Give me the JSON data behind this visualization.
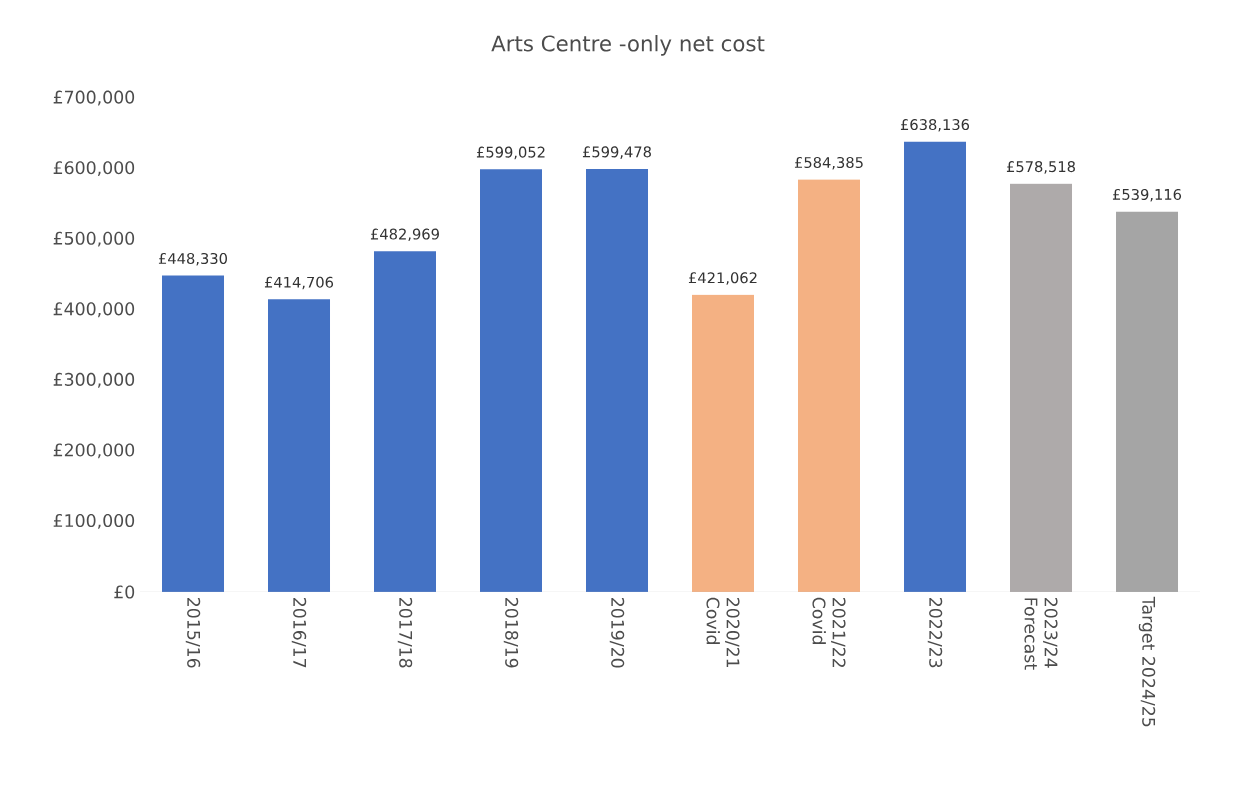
{
  "chart_data": {
    "type": "bar",
    "title": "Arts Centre -only net cost",
    "categories": [
      "2015/16",
      "2016/17",
      "2017/18",
      "2018/19",
      "2019/20",
      "2020/21 Covid",
      "2021/22 Covid",
      "2022/23",
      "2023/24 Forecast",
      "Target 2024/25"
    ],
    "values": [
      448330,
      414706,
      482969,
      599052,
      599478,
      421062,
      584385,
      638136,
      578518,
      539116
    ],
    "colors": [
      "#4472c4",
      "#4472c4",
      "#4472c4",
      "#4472c4",
      "#4472c4",
      "#f4b183",
      "#f4b183",
      "#4472c4",
      "#aeaaaa",
      "#a5a5a5"
    ],
    "value_labels": [
      "£448,330",
      "£414,706",
      "£482,969",
      "£599,052",
      "£599,478",
      "£421,062",
      "£584,385",
      "£638,136",
      "£578,518",
      "£539,116"
    ],
    "ylim": [
      0,
      700000
    ],
    "yticks": [
      {
        "value": 0,
        "label": "£0"
      },
      {
        "value": 100000,
        "label": "£100,000"
      },
      {
        "value": 200000,
        "label": "£200,000"
      },
      {
        "value": 300000,
        "label": "£300,000"
      },
      {
        "value": 400000,
        "label": "£400,000"
      },
      {
        "value": 500000,
        "label": "£500,000"
      },
      {
        "value": 600000,
        "label": "£600,000"
      },
      {
        "value": 700000,
        "label": "£700,000"
      }
    ],
    "grid": false
  }
}
